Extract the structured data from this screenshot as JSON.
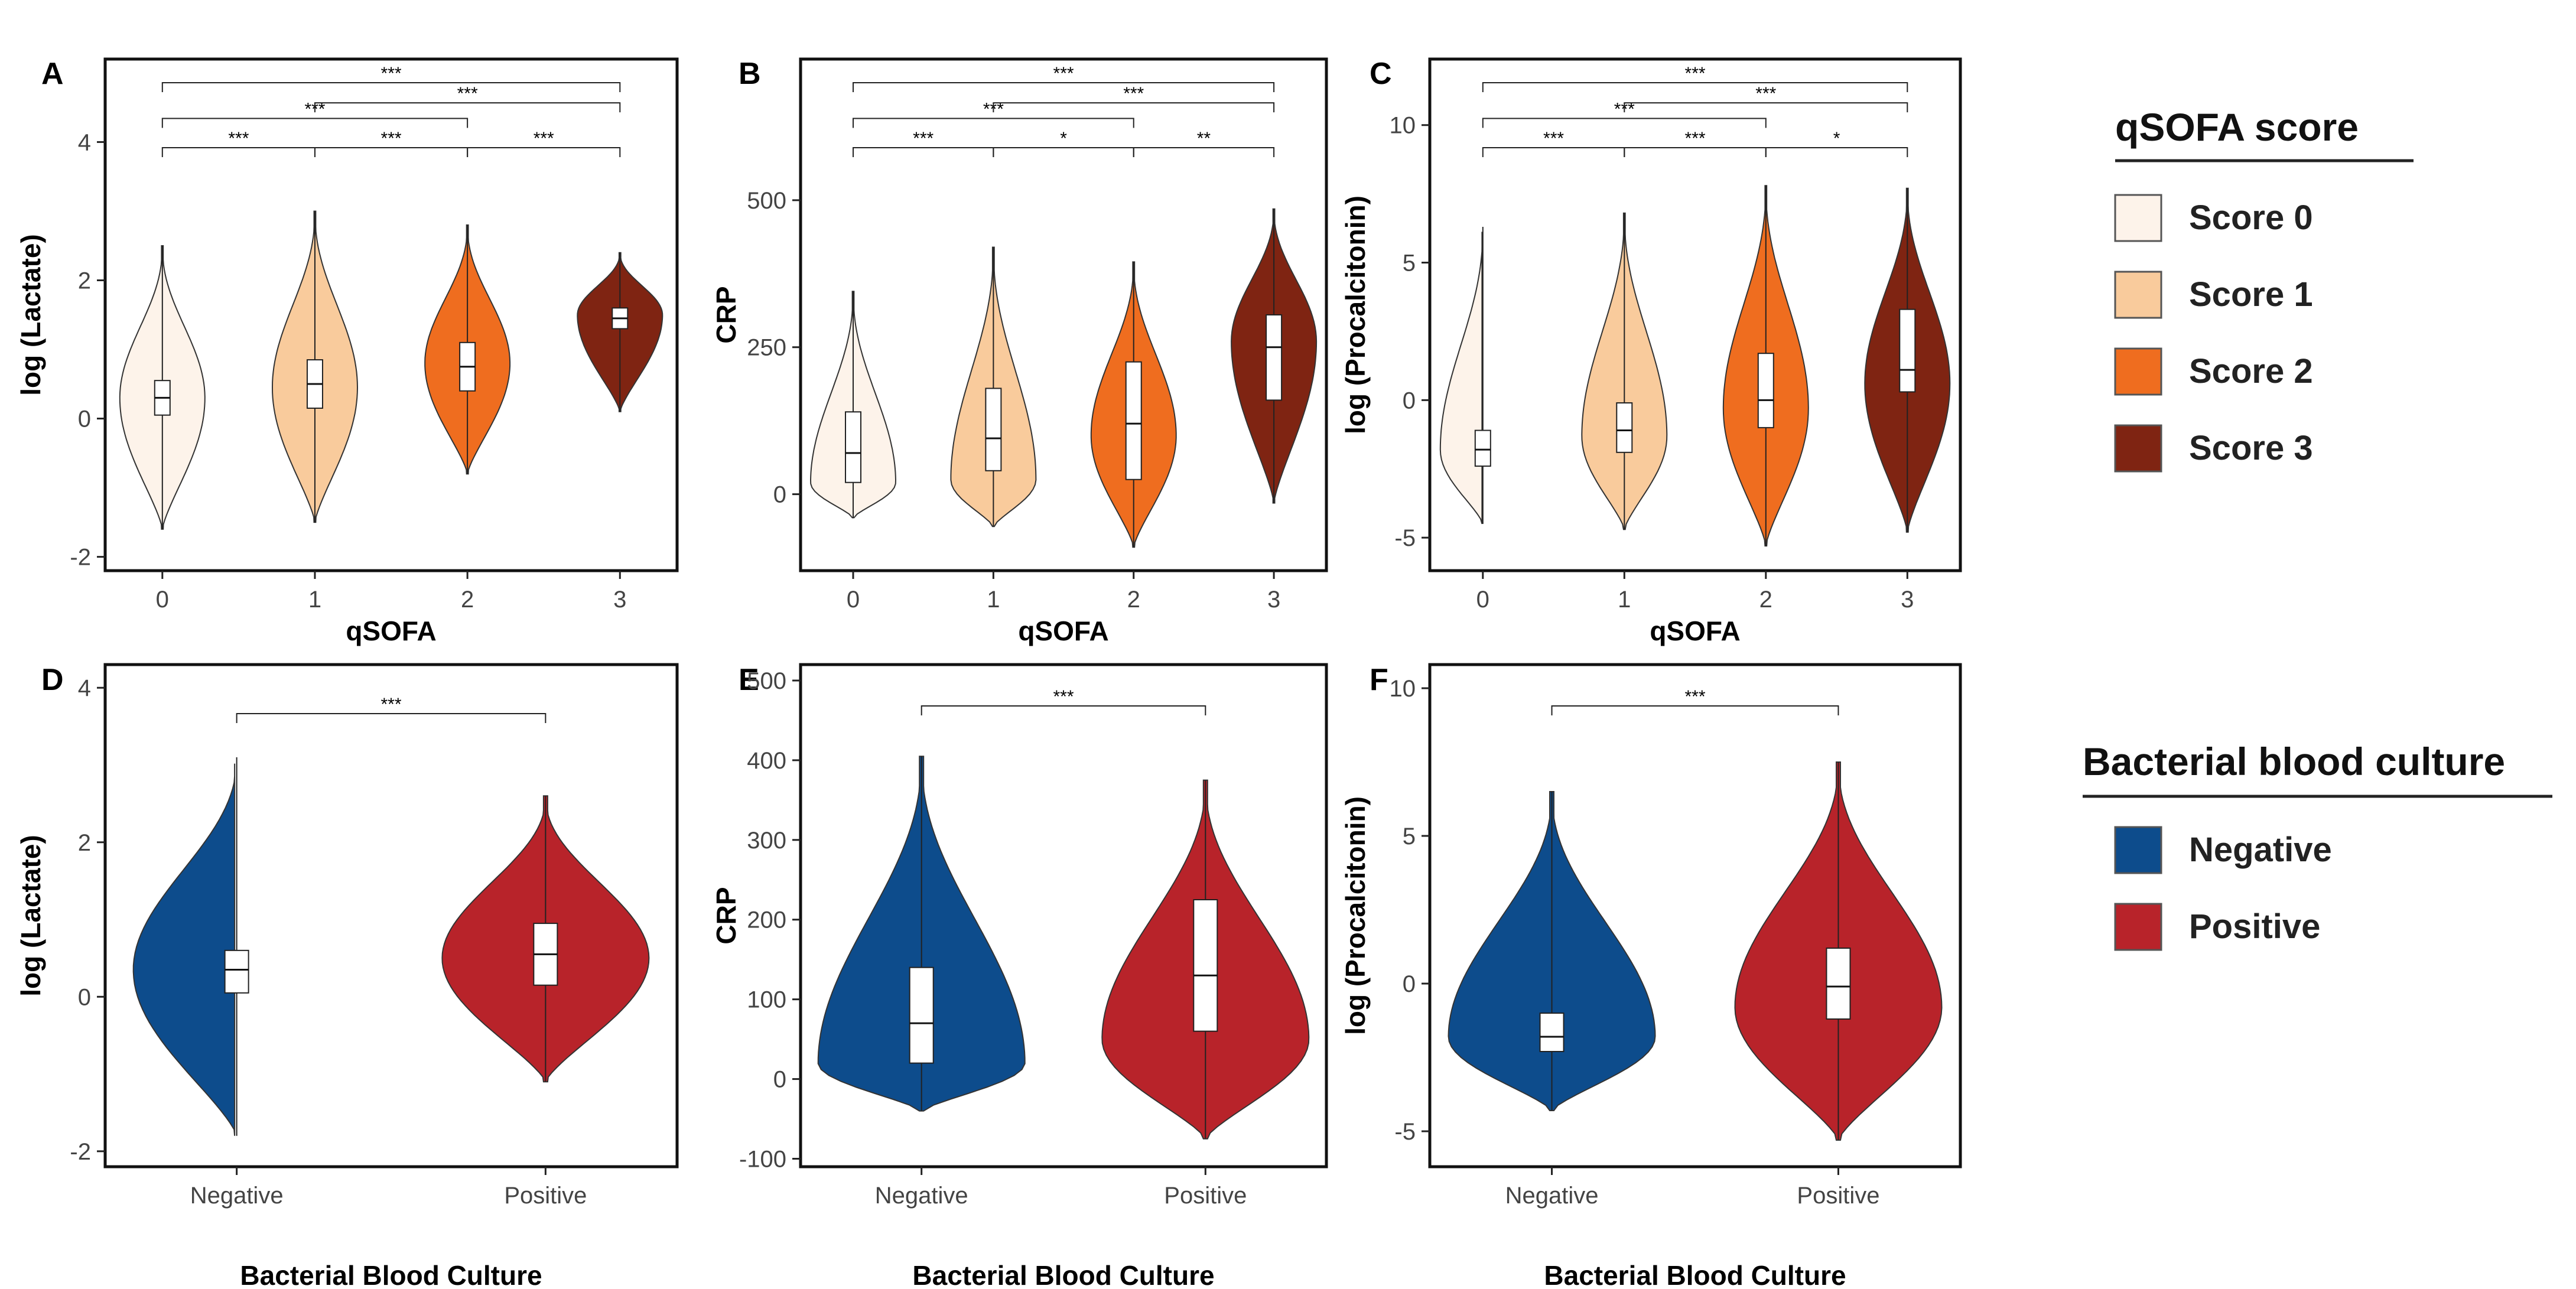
{
  "chart_data": [
    {
      "panel": "A",
      "type": "violin",
      "xlabel": "qSOFA",
      "ylabel": "log (Lactate)",
      "categories": [
        "0",
        "1",
        "2",
        "3"
      ],
      "yticks": [
        "-2",
        "0",
        "2",
        "4"
      ],
      "ylim": [
        -2.2,
        5.2
      ],
      "colors": [
        "#fdf3ea",
        "#f9cb9c",
        "#ef6d1f",
        "#7f2412"
      ],
      "series": [
        {
          "name": "0",
          "q1": 0.05,
          "median": 0.3,
          "q3": 0.55,
          "min": -1.6,
          "max": 2.5,
          "peak": 0.3
        },
        {
          "name": "1",
          "q1": 0.15,
          "median": 0.5,
          "q3": 0.85,
          "min": -1.5,
          "max": 3.0,
          "peak": 0.45
        },
        {
          "name": "2",
          "q1": 0.4,
          "median": 0.75,
          "q3": 1.1,
          "min": -0.8,
          "max": 2.8,
          "peak": 0.8
        },
        {
          "name": "3",
          "q1": 1.3,
          "median": 1.45,
          "q3": 1.6,
          "min": 0.1,
          "max": 2.4,
          "peak": 1.5
        }
      ],
      "comparisons": [
        {
          "a": 0,
          "b": 1,
          "label": "***"
        },
        {
          "a": 1,
          "b": 2,
          "label": "***"
        },
        {
          "a": 2,
          "b": 3,
          "label": "***"
        },
        {
          "a": 0,
          "b": 2,
          "label": "***"
        },
        {
          "a": 1,
          "b": 3,
          "label": "***"
        },
        {
          "a": 0,
          "b": 3,
          "label": "***"
        }
      ]
    },
    {
      "panel": "B",
      "type": "violin",
      "xlabel": "qSOFA",
      "ylabel": "CRP",
      "categories": [
        "0",
        "1",
        "2",
        "3"
      ],
      "yticks": [
        "0",
        "250",
        "500"
      ],
      "ylim": [
        -130,
        740
      ],
      "colors": [
        "#fdf3ea",
        "#f9cb9c",
        "#ef6d1f",
        "#7f2412"
      ],
      "series": [
        {
          "name": "0",
          "q1": 20,
          "median": 70,
          "q3": 140,
          "min": -40,
          "max": 345,
          "peak": 20
        },
        {
          "name": "1",
          "q1": 40,
          "median": 95,
          "q3": 180,
          "min": -55,
          "max": 420,
          "peak": 25
        },
        {
          "name": "2",
          "q1": 25,
          "median": 120,
          "q3": 225,
          "min": -90,
          "max": 395,
          "peak": 100
        },
        {
          "name": "3",
          "q1": 160,
          "median": 250,
          "q3": 305,
          "min": -15,
          "max": 485,
          "peak": 260
        }
      ],
      "comparisons": [
        {
          "a": 0,
          "b": 1,
          "label": "***"
        },
        {
          "a": 1,
          "b": 2,
          "label": "*"
        },
        {
          "a": 2,
          "b": 3,
          "label": "**"
        },
        {
          "a": 0,
          "b": 2,
          "label": "***"
        },
        {
          "a": 1,
          "b": 3,
          "label": "***"
        },
        {
          "a": 0,
          "b": 3,
          "label": "***"
        }
      ]
    },
    {
      "panel": "C",
      "type": "violin",
      "xlabel": "qSOFA",
      "ylabel": "log (Procalcitonin)",
      "categories": [
        "0",
        "1",
        "2",
        "3"
      ],
      "yticks": [
        "-5",
        "0",
        "5",
        "10"
      ],
      "ylim": [
        -6.2,
        12.4
      ],
      "colors": [
        "#fdf3ea",
        "#f9cb9c",
        "#ef6d1f",
        "#7f2412"
      ],
      "series": [
        {
          "name": "0",
          "q1": -2.4,
          "median": -1.8,
          "q3": -1.1,
          "min": -4.5,
          "max": 6.3,
          "peak": -1.8
        },
        {
          "name": "1",
          "q1": -1.9,
          "median": -1.1,
          "q3": -0.1,
          "min": -4.7,
          "max": 6.8,
          "peak": -1.3
        },
        {
          "name": "2",
          "q1": -1.0,
          "median": 0.0,
          "q3": 1.7,
          "min": -5.3,
          "max": 7.8,
          "peak": -0.3
        },
        {
          "name": "3",
          "q1": 0.3,
          "median": 1.1,
          "q3": 3.3,
          "min": -4.8,
          "max": 7.7,
          "peak": 0.6
        }
      ],
      "comparisons": [
        {
          "a": 0,
          "b": 1,
          "label": "***"
        },
        {
          "a": 1,
          "b": 2,
          "label": "***"
        },
        {
          "a": 2,
          "b": 3,
          "label": "*"
        },
        {
          "a": 0,
          "b": 2,
          "label": "***"
        },
        {
          "a": 1,
          "b": 3,
          "label": "***"
        },
        {
          "a": 0,
          "b": 3,
          "label": "***"
        }
      ]
    },
    {
      "panel": "D",
      "type": "violin",
      "xlabel": "Bacterial Blood Culture",
      "ylabel": "log (Lactate)",
      "categories": [
        "Negative",
        "Positive"
      ],
      "yticks": [
        "-2",
        "0",
        "2",
        "4"
      ],
      "ylim": [
        -2.2,
        4.3
      ],
      "colors": [
        "#0d4c8c",
        "#b8232a"
      ],
      "series": [
        {
          "name": "Negative",
          "q1": 0.05,
          "median": 0.35,
          "q3": 0.6,
          "min": -1.8,
          "max": 3.1,
          "peak": 0.35
        },
        {
          "name": "Positive",
          "q1": 0.15,
          "median": 0.55,
          "q3": 0.95,
          "min": -1.1,
          "max": 2.6,
          "peak": 0.5
        }
      ],
      "comparisons": [
        {
          "a": 0,
          "b": 1,
          "label": "***"
        }
      ]
    },
    {
      "panel": "E",
      "type": "violin",
      "xlabel": "Bacterial Blood Culture",
      "ylabel": "CRP",
      "categories": [
        "Negative",
        "Positive"
      ],
      "yticks": [
        "-100",
        "0",
        "100",
        "200",
        "300",
        "400",
        "500"
      ],
      "ylim": [
        -110,
        520
      ],
      "colors": [
        "#0d4c8c",
        "#b8232a"
      ],
      "series": [
        {
          "name": "Negative",
          "q1": 20,
          "median": 70,
          "q3": 140,
          "min": -40,
          "max": 405,
          "peak": 20
        },
        {
          "name": "Positive",
          "q1": 60,
          "median": 130,
          "q3": 225,
          "min": -75,
          "max": 375,
          "peak": 50
        }
      ],
      "comparisons": [
        {
          "a": 0,
          "b": 1,
          "label": "***"
        }
      ]
    },
    {
      "panel": "F",
      "type": "violin",
      "xlabel": "Bacterial Blood Culture",
      "ylabel": "log (Procalcitonin)",
      "categories": [
        "Negative",
        "Positive"
      ],
      "yticks": [
        "-5",
        "0",
        "5",
        "10"
      ],
      "ylim": [
        -6.2,
        10.8
      ],
      "colors": [
        "#0d4c8c",
        "#b8232a"
      ],
      "series": [
        {
          "name": "Negative",
          "q1": -2.3,
          "median": -1.8,
          "q3": -1.0,
          "min": -4.3,
          "max": 6.5,
          "peak": -1.8
        },
        {
          "name": "Positive",
          "q1": -1.2,
          "median": -0.1,
          "q3": 1.2,
          "min": -5.3,
          "max": 7.5,
          "peak": -0.8
        }
      ],
      "comparisons": [
        {
          "a": 0,
          "b": 1,
          "label": "***"
        }
      ]
    }
  ],
  "legends": [
    {
      "title": "qSOFA score",
      "items": [
        {
          "label": "Score 0",
          "color": "#fdf3ea"
        },
        {
          "label": "Score 1",
          "color": "#f9cb9c"
        },
        {
          "label": "Score 2",
          "color": "#ef6d1f"
        },
        {
          "label": "Score 3",
          "color": "#7f2412"
        }
      ]
    },
    {
      "title": "Bacterial blood culture",
      "items": [
        {
          "label": "Negative",
          "color": "#0d4c8c"
        },
        {
          "label": "Positive",
          "color": "#b8232a"
        }
      ]
    }
  ]
}
